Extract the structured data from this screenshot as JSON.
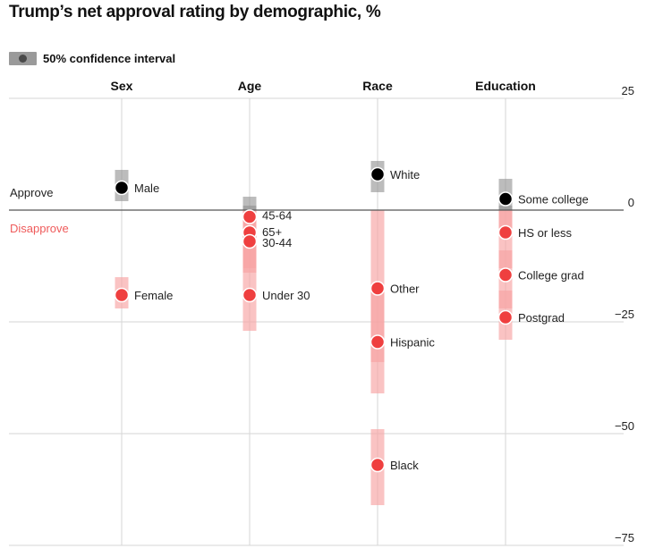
{
  "title": "Trump’s net approval rating by demographic, %",
  "legend": {
    "label": "50% confidence interval"
  },
  "zone_labels": {
    "approve": "Approve",
    "disapprove": "Disapprove"
  },
  "colors": {
    "approve_point": "#000000",
    "disapprove_point": "#ef3f3f",
    "approve_band": "#8f8f8f",
    "disapprove_band": "#f7a3a3",
    "disapprove_label": "#ef5b5b",
    "gridline": "#d6d6d6",
    "zero_line": "#555555"
  },
  "chart_data": {
    "type": "scatter",
    "title": "Trump’s net approval rating by demographic, %",
    "xlabel": "",
    "ylabel": "",
    "ylim": [
      -75,
      25
    ],
    "yticks": [
      25,
      0,
      -25,
      -50,
      -75
    ],
    "grid": true,
    "categories": [
      "Sex",
      "Age",
      "Race",
      "Education"
    ],
    "groups": [
      {
        "category": "Sex",
        "points": [
          {
            "label": "Male",
            "value": 5,
            "ci": [
              2,
              9
            ]
          },
          {
            "label": "Female",
            "value": -19,
            "ci": [
              -22,
              -15
            ]
          }
        ]
      },
      {
        "category": "Age",
        "points": [
          {
            "label": "45-64",
            "value": -1.5,
            "ci": [
              -11,
              3
            ]
          },
          {
            "label": "65+",
            "value": -5,
            "ci": [
              -13,
              1
            ]
          },
          {
            "label": "30-44",
            "value": -7,
            "ci": [
              -14,
              -1
            ]
          },
          {
            "label": "Under 30",
            "value": -19,
            "ci": [
              -27,
              -11
            ]
          }
        ]
      },
      {
        "category": "Race",
        "points": [
          {
            "label": "White",
            "value": 8,
            "ci": [
              4,
              11
            ]
          },
          {
            "label": "Other",
            "value": -17.5,
            "ci": [
              -41,
              0
            ]
          },
          {
            "label": "Hispanic",
            "value": -29.5,
            "ci": [
              -34,
              -17
            ]
          },
          {
            "label": "Black",
            "value": -57,
            "ci": [
              -66,
              -49
            ]
          }
        ]
      },
      {
        "category": "Education",
        "points": [
          {
            "label": "Some college",
            "value": 2.5,
            "ci": [
              -4,
              7
            ]
          },
          {
            "label": "HS or less",
            "value": -5,
            "ci": [
              -13,
              1
            ]
          },
          {
            "label": "College grad",
            "value": -14.5,
            "ci": [
              -22,
              -9
            ]
          },
          {
            "label": "Postgrad",
            "value": -24,
            "ci": [
              -29,
              -18
            ]
          }
        ]
      }
    ]
  }
}
